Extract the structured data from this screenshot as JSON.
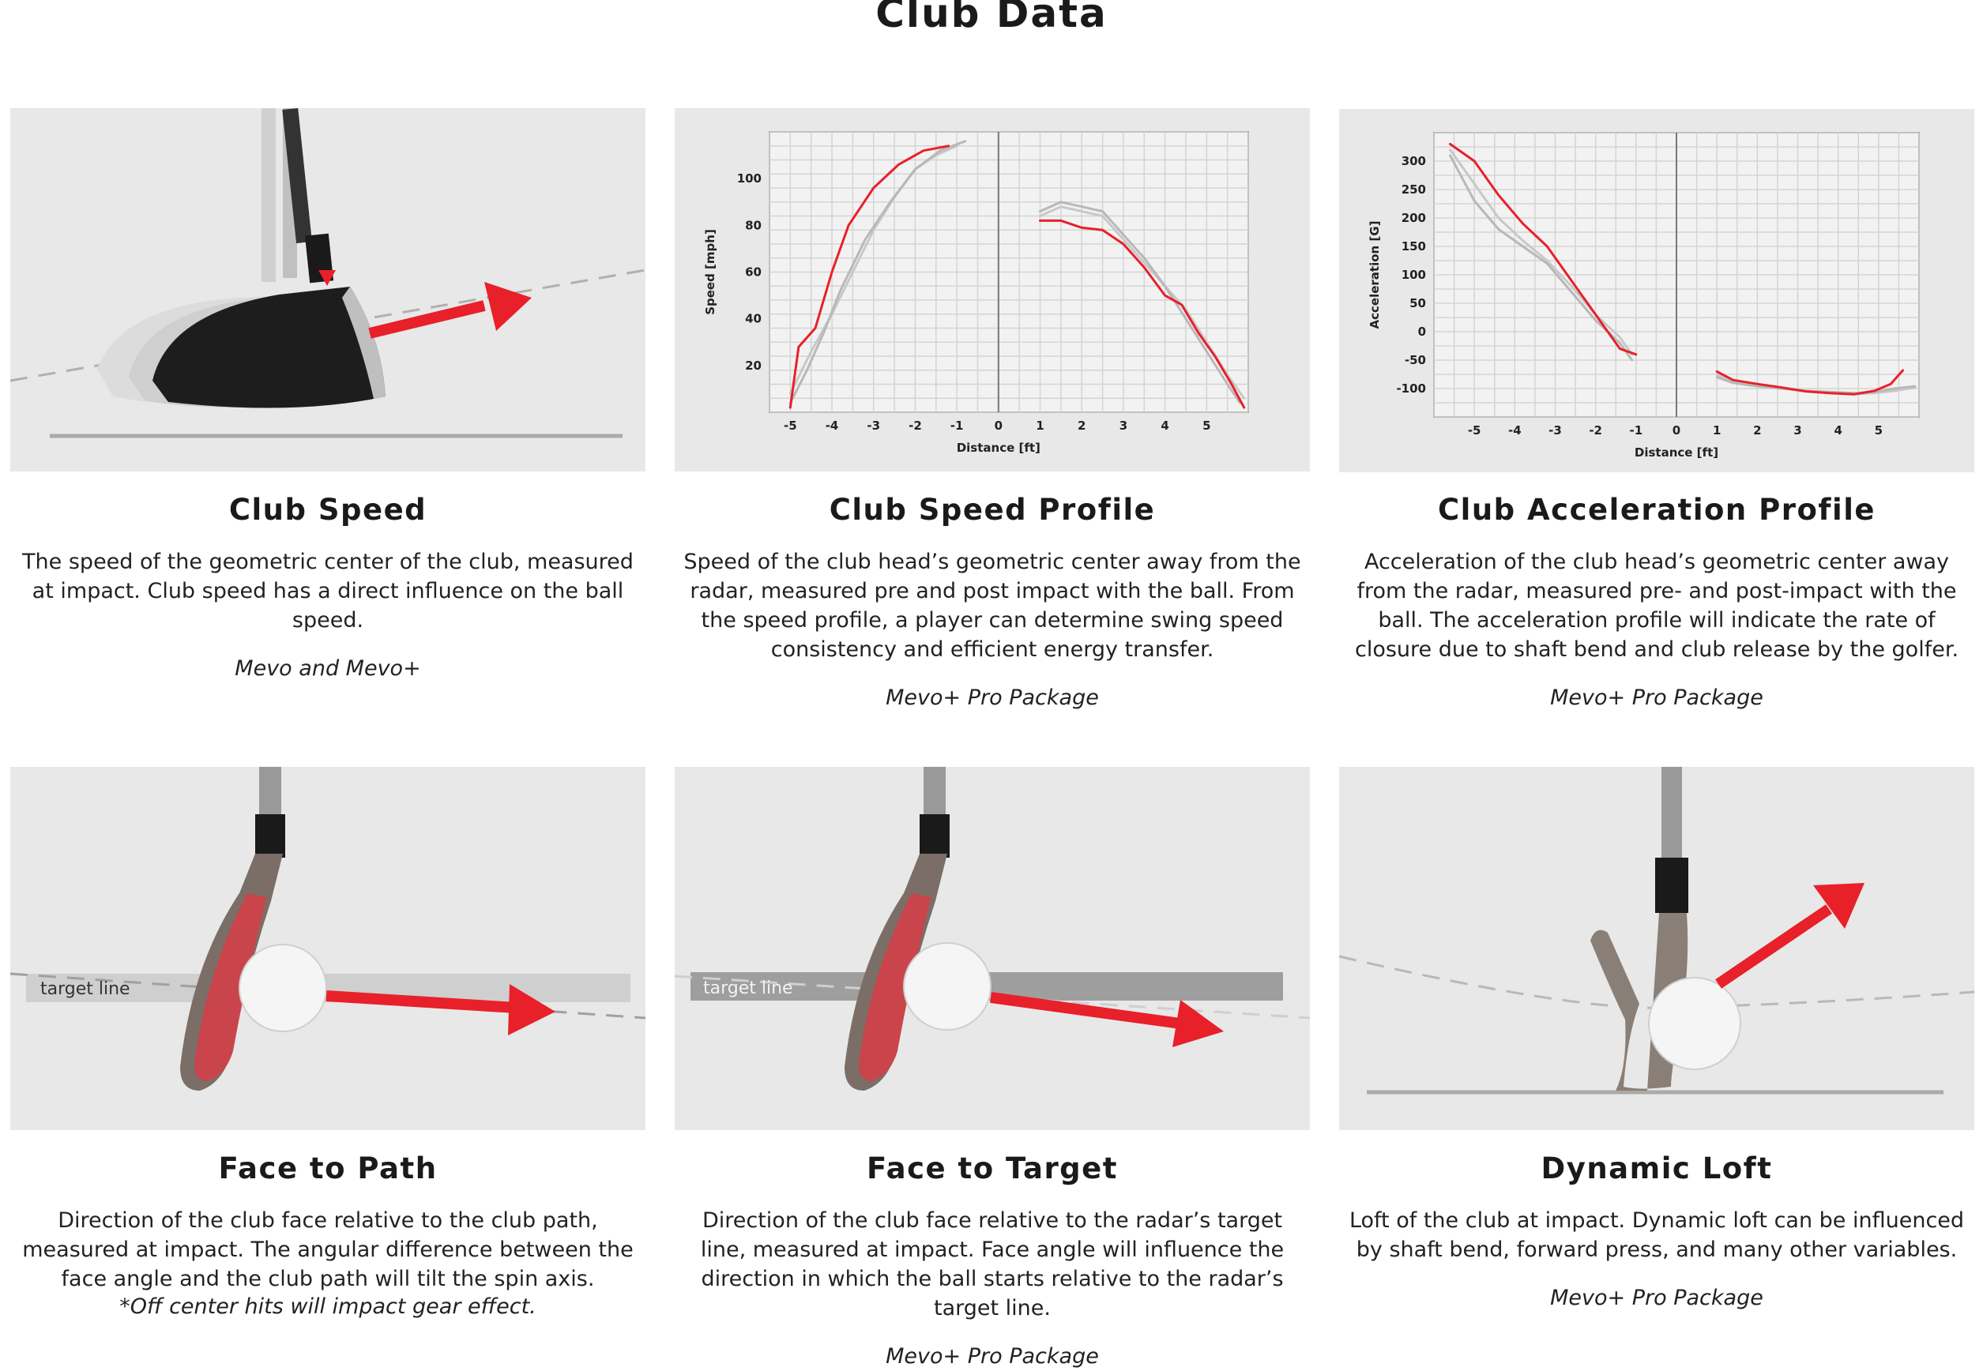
{
  "page": {
    "title": "Club Data"
  },
  "cards": [
    {
      "title": "Club Speed",
      "description": "The speed of the geometric center of the club, measured at impact. Club speed has a direct influence on the ball speed.",
      "package": "Mevo and Mevo+"
    },
    {
      "title": "Club Speed Profile",
      "description": "Speed of the club head’s geometric center away from the radar, measured pre and post impact with the ball. From the speed profile, a player can determine swing speed consistency and efficient energy transfer.",
      "package": "Mevo+ Pro Package"
    },
    {
      "title": "Club Acceleration Profile",
      "description": "Acceleration of the club head’s geometric center away from the radar, measured pre- and post-impact with the ball. The acceleration profile will indicate the rate of closure due to shaft bend and club release by the golfer.",
      "package": "Mevo+ Pro Package"
    },
    {
      "title": "Face to Path",
      "description": "Direction of the club face relative to the club path, measured at impact. The angular difference between the face angle and the club path will tilt the spin axis.",
      "note": "*Off center hits will impact gear effect.",
      "image_label": "target line"
    },
    {
      "title": "Face to Target",
      "description": "Direction of the club face relative to the radar’s target line, measured at impact. Face angle will influence the direction in which the ball starts relative to the radar’s target line.",
      "package": "Mevo+ Pro Package",
      "image_label": "target line"
    },
    {
      "title": "Dynamic Loft",
      "description": "Loft of the club at impact. Dynamic loft can be influenced by shaft bend, forward press, and many other variables.",
      "package": "Mevo+ Pro Package"
    }
  ],
  "chart_data": [
    {
      "type": "line",
      "xlabel": "Distance [ft]",
      "ylabel": "Speed [mph]",
      "x_ticks": [
        "-5",
        "-4",
        "-3",
        "-2",
        "-1",
        "0",
        "1",
        "2",
        "3",
        "4",
        "5"
      ],
      "y_ticks": [
        "20",
        "40",
        "60",
        "80",
        "100"
      ],
      "xlim": [
        -5.5,
        6
      ],
      "ylim": [
        0,
        120
      ],
      "series": [
        {
          "color": "#e8202a",
          "pre_x": [
            -5,
            -4.8,
            -4.4,
            -4,
            -3.6,
            -3,
            -2.4,
            -1.8,
            -1.2
          ],
          "pre_y": [
            2,
            28,
            36,
            60,
            80,
            96,
            106,
            112,
            114
          ],
          "post_x": [
            1,
            1.5,
            2,
            2.5,
            3,
            3.5,
            4,
            4.4,
            4.8,
            5.2,
            5.6,
            5.9
          ],
          "post_y": [
            82,
            82,
            79,
            78,
            72,
            62,
            50,
            46,
            34,
            24,
            12,
            2
          ]
        },
        {
          "color": "#b8b8b8",
          "pre_x": [
            -5,
            -4.6,
            -4.2,
            -3.8,
            -3.2,
            -2.6,
            -2,
            -1.4,
            -0.8
          ],
          "pre_y": [
            4,
            18,
            34,
            52,
            74,
            90,
            104,
            112,
            116
          ],
          "post_x": [
            1,
            1.5,
            2,
            2.5,
            3,
            3.5,
            4,
            4.5,
            5,
            5.5,
            5.8
          ],
          "post_y": [
            86,
            90,
            88,
            86,
            76,
            66,
            54,
            40,
            26,
            12,
            4
          ]
        },
        {
          "color": "#c8c8c8",
          "pre_x": [
            -5,
            -4.5,
            -4,
            -3.5,
            -3,
            -2.5,
            -2,
            -1.5,
            -1
          ],
          "pre_y": [
            8,
            26,
            42,
            60,
            78,
            92,
            104,
            110,
            114
          ],
          "post_x": [
            1,
            1.5,
            2,
            2.5,
            3,
            3.5,
            4,
            4.5,
            5,
            5.5,
            5.9
          ],
          "post_y": [
            84,
            88,
            86,
            84,
            74,
            64,
            54,
            44,
            30,
            16,
            6
          ]
        }
      ]
    },
    {
      "type": "line",
      "xlabel": "Distance [ft]",
      "ylabel": "Acceleration [G]",
      "x_ticks": [
        "-5",
        "-4",
        "-3",
        "-2",
        "-1",
        "0",
        "1",
        "2",
        "3",
        "4",
        "5"
      ],
      "y_ticks": [
        "300",
        "250",
        "200",
        "150",
        "100",
        "50",
        "0",
        "-50",
        "-100"
      ],
      "xlim": [
        -6,
        6
      ],
      "ylim": [
        -150,
        350
      ],
      "series": [
        {
          "color": "#e8202a",
          "pre_x": [
            -5.6,
            -5,
            -4.4,
            -3.8,
            -3.2,
            -2.6,
            -2,
            -1.4,
            -1
          ],
          "pre_y": [
            330,
            300,
            240,
            190,
            150,
            90,
            30,
            -30,
            -40
          ],
          "post_x": [
            1,
            1.4,
            2,
            2.6,
            3.2,
            3.8,
            4.4,
            4.9,
            5.3,
            5.6
          ],
          "post_y": [
            -70,
            -85,
            -92,
            -98,
            -105,
            -108,
            -110,
            -104,
            -92,
            -68
          ]
        },
        {
          "color": "#b8b8b8",
          "pre_x": [
            -5.6,
            -5,
            -4.4,
            -3.8,
            -3.2,
            -2.6,
            -2,
            -1.4,
            -1.1
          ],
          "pre_y": [
            310,
            230,
            180,
            150,
            120,
            70,
            20,
            -20,
            -50
          ],
          "post_x": [
            1,
            1.4,
            2,
            2.6,
            3.2,
            3.8,
            4.4,
            4.9,
            5.4,
            5.9
          ],
          "post_y": [
            -80,
            -90,
            -96,
            -100,
            -104,
            -106,
            -108,
            -106,
            -100,
            -96
          ]
        },
        {
          "color": "#c8c8c8",
          "pre_x": [
            -5.6,
            -5,
            -4.4,
            -3.8,
            -3.2,
            -2.6,
            -2,
            -1.4,
            -1.1
          ],
          "pre_y": [
            320,
            260,
            200,
            160,
            125,
            80,
            30,
            -10,
            -40
          ],
          "post_x": [
            1,
            1.4,
            2,
            2.6,
            3.2,
            3.8,
            4.4,
            4.9,
            5.4,
            5.9
          ],
          "post_y": [
            -75,
            -88,
            -95,
            -100,
            -104,
            -108,
            -110,
            -108,
            -104,
            -98
          ]
        }
      ]
    }
  ]
}
